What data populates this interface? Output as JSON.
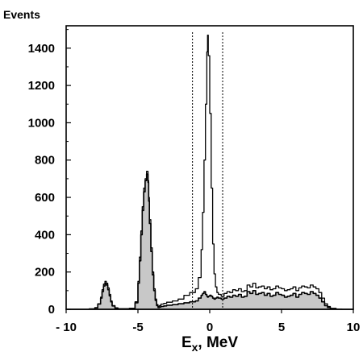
{
  "chart_data": {
    "type": "area",
    "title": "",
    "ylabel": "Events",
    "xlabel": {
      "base": "E",
      "subscript": "x",
      "suffix": ", MeV"
    },
    "xlim": [
      -10,
      10
    ],
    "ylim": [
      0,
      1520
    ],
    "x_ticks": [
      -10,
      -5,
      0,
      5,
      10
    ],
    "x_tick_labels": [
      "- 10",
      "-5",
      "0",
      "5",
      "10"
    ],
    "y_ticks": [
      0,
      200,
      400,
      600,
      800,
      1000,
      1200,
      1400
    ],
    "y_tick_labels": [
      "0",
      "200",
      "400",
      "600",
      "800",
      "1000",
      "1200",
      "1400"
    ],
    "cut_lines": [
      -1.2,
      0.9
    ],
    "grid": false,
    "colors": {
      "fill": "#c8c8c8",
      "line": "#000000"
    },
    "series": [
      {
        "type": "step",
        "x": [
          -11,
          -8.4,
          -8.0,
          -7.8,
          -7.6,
          -7.5,
          -7.4,
          -7.3,
          -7.2,
          -7.1,
          -7.0,
          -6.9,
          -6.8,
          -6.6,
          -6.4,
          -5.6,
          -5.2,
          -5.0,
          -4.9,
          -4.8,
          -4.7,
          -4.6,
          -4.5,
          -4.4,
          -4.3,
          -4.25,
          -4.2,
          -4.1,
          -4.0,
          -3.9,
          -3.8,
          -3.7,
          -3.6,
          -3.5,
          -3.4,
          -3.2,
          -3.0,
          -2.6,
          -2.2,
          -1.8,
          -1.4,
          -1.0,
          -0.8,
          -0.6,
          -0.5,
          -0.4,
          -0.3,
          -0.2,
          -0.15,
          -0.1,
          0.0,
          0.1,
          0.2,
          0.3,
          0.4,
          0.5,
          0.6,
          0.8,
          1.0,
          1.2,
          1.4,
          1.6,
          1.8,
          2.0,
          2.2,
          2.4,
          2.6,
          2.8,
          3.0,
          3.2,
          3.4,
          3.6,
          3.8,
          4.0,
          4.2,
          4.4,
          4.6,
          4.8,
          5.0,
          5.2,
          5.4,
          5.6,
          5.8,
          6.0,
          6.2,
          6.4,
          6.6,
          6.8,
          7.0,
          7.2,
          7.4,
          7.6,
          7.8,
          8.0,
          8.2,
          8.4,
          8.8,
          9.2,
          11
        ],
        "y": [
          0,
          2,
          8,
          30,
          65,
          105,
          135,
          150,
          140,
          115,
          80,
          45,
          20,
          8,
          3,
          5,
          40,
          150,
          280,
          420,
          550,
          650,
          700,
          740,
          690,
          600,
          480,
          330,
          200,
          110,
          55,
          25,
          15,
          20,
          28,
          32,
          38,
          45,
          55,
          75,
          90,
          110,
          170,
          320,
          520,
          800,
          1100,
          1380,
          1470,
          1360,
          1050,
          650,
          350,
          190,
          120,
          90,
          80,
          70,
          85,
          95,
          90,
          105,
          100,
          110,
          95,
          100,
          130,
          120,
          140,
          115,
          120,
          125,
          110,
          120,
          105,
          110,
          125,
          115,
          110,
          100,
          105,
          110,
          120,
          100,
          115,
          125,
          120,
          115,
          130,
          120,
          110,
          90,
          60,
          30,
          15,
          5,
          1,
          0,
          0
        ]
      },
      {
        "type": "filled-step",
        "x": [
          -11,
          -8.4,
          -8.0,
          -7.8,
          -7.6,
          -7.5,
          -7.4,
          -7.3,
          -7.2,
          -7.1,
          -7.0,
          -6.9,
          -6.8,
          -6.6,
          -6.4,
          -5.6,
          -5.2,
          -5.0,
          -4.9,
          -4.8,
          -4.7,
          -4.6,
          -4.5,
          -4.4,
          -4.3,
          -4.25,
          -4.2,
          -4.1,
          -4.0,
          -3.9,
          -3.8,
          -3.7,
          -3.6,
          -3.5,
          -3.4,
          -3.2,
          -3.0,
          -2.6,
          -2.2,
          -1.8,
          -1.4,
          -1.0,
          -0.8,
          -0.6,
          -0.5,
          -0.4,
          -0.3,
          -0.2,
          -0.15,
          -0.1,
          0.0,
          0.1,
          0.2,
          0.3,
          0.4,
          0.5,
          0.6,
          0.8,
          1.0,
          1.2,
          1.4,
          1.6,
          1.8,
          2.0,
          2.2,
          2.4,
          2.6,
          2.8,
          3.0,
          3.2,
          3.4,
          3.6,
          3.8,
          4.0,
          4.2,
          4.4,
          4.6,
          4.8,
          5.0,
          5.2,
          5.4,
          5.6,
          5.8,
          6.0,
          6.2,
          6.4,
          6.6,
          6.8,
          7.0,
          7.2,
          7.4,
          7.6,
          7.8,
          8.0,
          8.2,
          8.4,
          8.8,
          9.2,
          11
        ],
        "y": [
          0,
          2,
          8,
          28,
          60,
          95,
          125,
          140,
          130,
          105,
          72,
          40,
          18,
          7,
          2,
          4,
          35,
          140,
          260,
          400,
          530,
          630,
          690,
          725,
          680,
          580,
          460,
          310,
          185,
          100,
          48,
          20,
          10,
          12,
          15,
          18,
          22,
          25,
          30,
          35,
          40,
          45,
          60,
          75,
          85,
          95,
          80,
          70,
          65,
          70,
          75,
          70,
          60,
          55,
          60,
          65,
          60,
          55,
          60,
          70,
          65,
          75,
          70,
          80,
          65,
          70,
          95,
          85,
          100,
          80,
          85,
          90,
          75,
          85,
          70,
          75,
          90,
          80,
          75,
          65,
          70,
          75,
          85,
          65,
          80,
          90,
          85,
          80,
          95,
          85,
          75,
          60,
          40,
          20,
          10,
          3,
          1,
          0,
          0
        ]
      }
    ]
  }
}
